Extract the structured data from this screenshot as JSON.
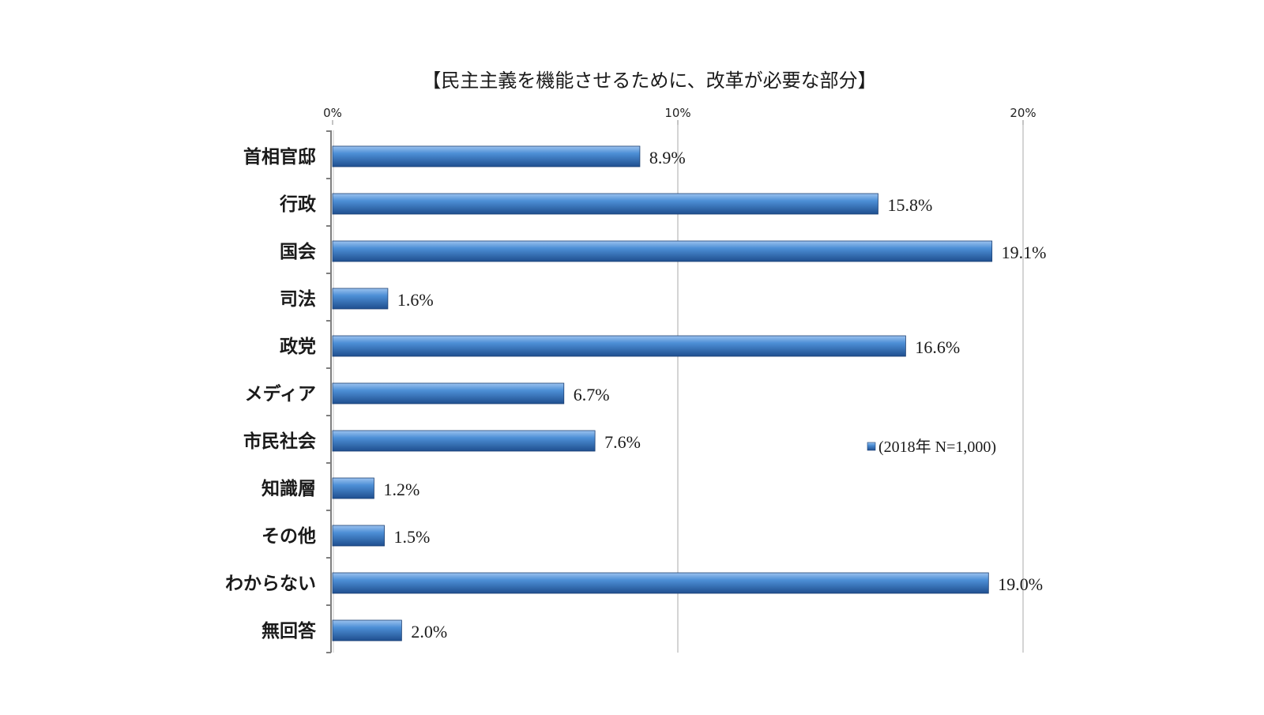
{
  "chart_data": {
    "type": "bar",
    "orientation": "horizontal",
    "title": "【民主主義を機能させるために、改革が必要な部分】",
    "categories": [
      "首相官邸",
      "行政",
      "国会",
      "司法",
      "政党",
      "メディア",
      "市民社会",
      "知識層",
      "その他",
      "わからない",
      "無回答"
    ],
    "series": [
      {
        "name": "(2018年 N=1,000)",
        "values": [
          8.9,
          15.8,
          19.1,
          1.6,
          16.6,
          6.7,
          7.6,
          1.2,
          1.5,
          19.0,
          2.0
        ],
        "data_labels": [
          "8.9%",
          "15.8%",
          "19.1%",
          "1.6%",
          "16.6%",
          "6.7%",
          "7.6%",
          "1.2%",
          "1.5%",
          "19.0%",
          "2.0%"
        ]
      }
    ],
    "x_ticks": [
      "0%",
      "10%",
      "20%"
    ],
    "xlim": [
      0,
      20
    ],
    "grid": true,
    "legend_position": "right",
    "bar_color": "#3f7ec6"
  }
}
